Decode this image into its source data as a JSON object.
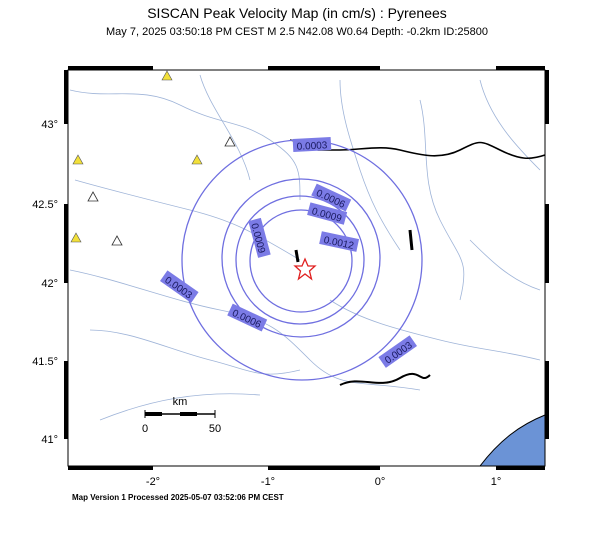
{
  "header": {
    "title": "SISCAN Peak Velocity Map (in cm/s) : Pyrenees",
    "subtitle": "May  7, 2025 03:50:18 PM CEST   M 2.5   N42.08 W0.64   Depth: -0.2km   ID:25800"
  },
  "map": {
    "lat_labels": [
      "43°",
      "42.5°",
      "42°",
      "41.5°",
      "41°"
    ],
    "lon_labels": [
      "-2°",
      "-1°",
      "0°",
      "1°"
    ],
    "contour_labels": [
      "0.0003",
      "0.0003",
      "0.0003",
      "0.0006",
      "0.0006",
      "0.0009",
      "0.0009",
      "0.0012"
    ],
    "scale_bar": {
      "unit": "km",
      "ticks": [
        "0",
        "50"
      ]
    }
  },
  "footer": "Map Version 1 Processed 2025-05-07 03:52:06 PM CEST"
}
